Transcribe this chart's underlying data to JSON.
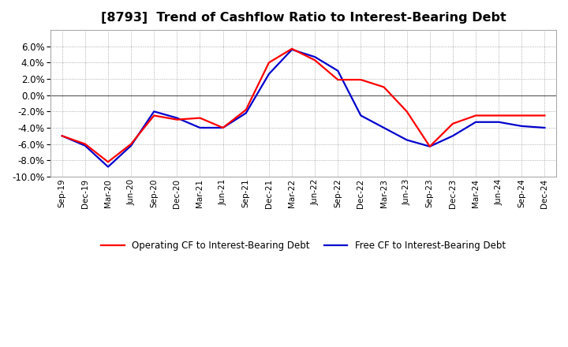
{
  "title": "[8793]  Trend of Cashflow Ratio to Interest-Bearing Debt",
  "x_labels": [
    "Sep-19",
    "Dec-19",
    "Mar-20",
    "Jun-20",
    "Sep-20",
    "Dec-20",
    "Mar-21",
    "Jun-21",
    "Sep-21",
    "Dec-21",
    "Mar-22",
    "Jun-22",
    "Sep-22",
    "Dec-22",
    "Mar-23",
    "Jun-23",
    "Sep-23",
    "Dec-23",
    "Mar-24",
    "Jun-24",
    "Sep-24",
    "Dec-24"
  ],
  "operating_cf": [
    -0.05,
    -0.06,
    -0.082,
    -0.06,
    -0.025,
    -0.03,
    -0.028,
    -0.04,
    -0.018,
    0.04,
    0.057,
    0.043,
    0.019,
    0.019,
    0.01,
    -0.02,
    -0.063,
    -0.035,
    -0.025,
    -0.025,
    -0.025,
    -0.025
  ],
  "free_cf": [
    -0.05,
    -0.062,
    -0.088,
    -0.062,
    -0.02,
    -0.028,
    -0.04,
    -0.04,
    -0.022,
    0.026,
    0.056,
    0.047,
    0.03,
    -0.025,
    -0.04,
    -0.055,
    -0.063,
    -0.05,
    -0.033,
    -0.033,
    -0.038,
    -0.04
  ],
  "ylim": [
    -0.1,
    0.08
  ],
  "yticks": [
    -0.1,
    -0.08,
    -0.06,
    -0.04,
    -0.02,
    0.0,
    0.02,
    0.04,
    0.06
  ],
  "operating_color": "#ff0000",
  "free_color": "#0000cc",
  "legend_operating": "Operating CF to Interest-Bearing Debt",
  "legend_free": "Free CF to Interest-Bearing Debt",
  "background_color": "#ffffff",
  "plot_bg_color": "#ffffff",
  "grid_color": "#999999",
  "line_width": 1.6,
  "title_fontsize": 11.5
}
